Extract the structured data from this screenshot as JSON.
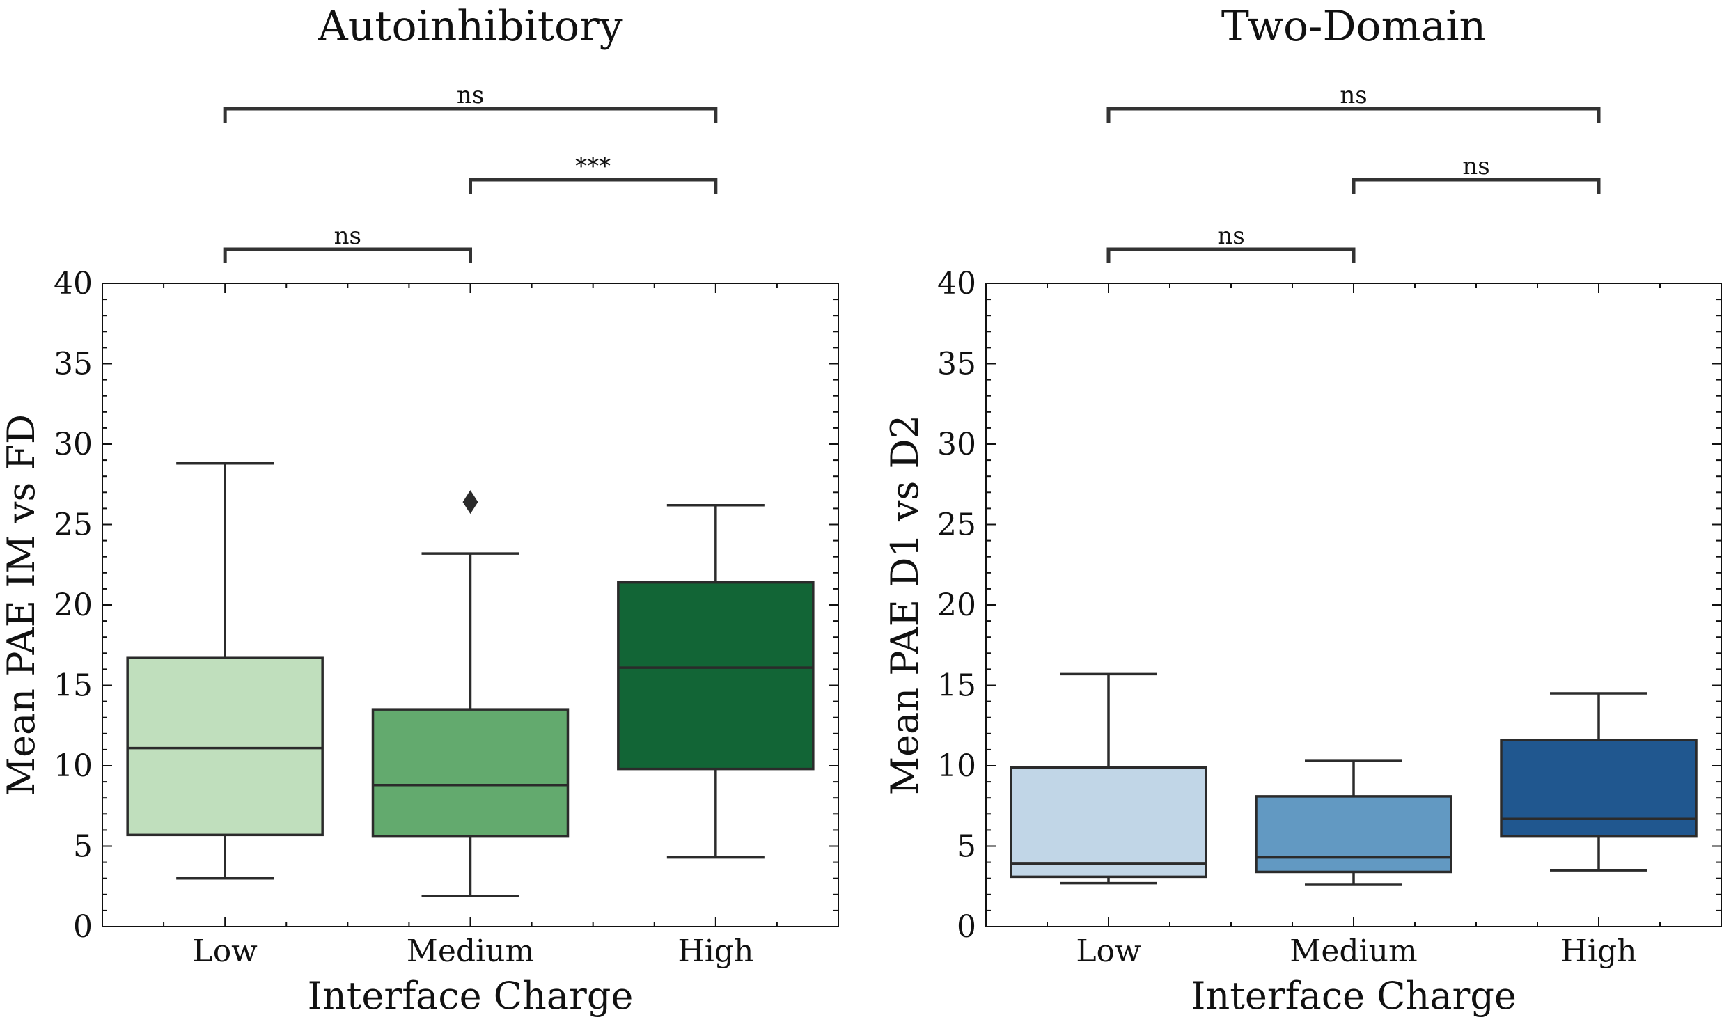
{
  "chart_data": [
    {
      "type": "box",
      "title": "Autoinhibitory",
      "xlabel": "Interface Charge",
      "ylabel": "Mean PAE IM vs FD",
      "ylim": [
        0,
        40
      ],
      "yticks": [
        0,
        5,
        10,
        15,
        20,
        25,
        30,
        35,
        40
      ],
      "categories": [
        "Low",
        "Medium",
        "High"
      ],
      "boxes": [
        {
          "category": "Low",
          "whisker_low": 3.0,
          "q1": 5.7,
          "median": 11.1,
          "q3": 16.7,
          "whisker_high": 28.8,
          "outliers": [],
          "color": "#c0dfbd"
        },
        {
          "category": "Medium",
          "whisker_low": 1.9,
          "q1": 5.6,
          "median": 8.8,
          "q3": 13.5,
          "whisker_high": 23.2,
          "outliers": [
            26.4
          ],
          "color": "#63aa6e"
        },
        {
          "category": "High",
          "whisker_low": 4.3,
          "q1": 9.8,
          "median": 16.1,
          "q3": 21.4,
          "whisker_high": 26.2,
          "outliers": [],
          "color": "#126536"
        }
      ],
      "significance": [
        {
          "from": "Low",
          "to": "Medium",
          "label": "ns",
          "level": 1
        },
        {
          "from": "Medium",
          "to": "High",
          "label": "***",
          "level": 2
        },
        {
          "from": "Low",
          "to": "High",
          "label": "ns",
          "level": 3
        }
      ]
    },
    {
      "type": "box",
      "title": "Two-Domain",
      "xlabel": "Interface Charge",
      "ylabel": "Mean PAE D1 vs D2",
      "ylim": [
        0,
        40
      ],
      "yticks": [
        0,
        5,
        10,
        15,
        20,
        25,
        30,
        35,
        40
      ],
      "categories": [
        "Low",
        "Medium",
        "High"
      ],
      "boxes": [
        {
          "category": "Low",
          "whisker_low": 2.7,
          "q1": 3.1,
          "median": 3.9,
          "q3": 9.9,
          "whisker_high": 15.7,
          "outliers": [],
          "color": "#c1d6e7"
        },
        {
          "category": "Medium",
          "whisker_low": 2.6,
          "q1": 3.4,
          "median": 4.3,
          "q3": 8.1,
          "whisker_high": 10.3,
          "outliers": [],
          "color": "#6299c2"
        },
        {
          "category": "High",
          "whisker_low": 3.5,
          "q1": 5.6,
          "median": 6.7,
          "q3": 11.6,
          "whisker_high": 14.5,
          "outliers": [],
          "color": "#20578f"
        }
      ],
      "significance": [
        {
          "from": "Low",
          "to": "Medium",
          "label": "ns",
          "level": 1
        },
        {
          "from": "Medium",
          "to": "High",
          "label": "ns",
          "level": 2
        },
        {
          "from": "Low",
          "to": "High",
          "label": "ns",
          "level": 3
        }
      ]
    }
  ]
}
